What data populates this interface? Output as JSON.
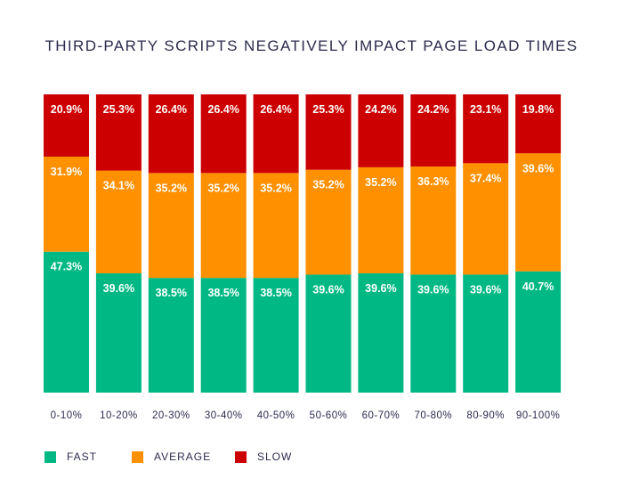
{
  "chart_data": {
    "type": "bar",
    "stacked": true,
    "title": "THIRD-PARTY SCRIPTS NEGATIVELY IMPACT PAGE LOAD TIMES",
    "categories": [
      "0-10%",
      "10-20%",
      "20-30%",
      "30-40%",
      "40-50%",
      "50-60%",
      "60-70%",
      "70-80%",
      "80-90%",
      "90-100%"
    ],
    "series": [
      {
        "name": "FAST",
        "color": "#00b884",
        "values": [
          47.3,
          39.6,
          38.5,
          38.5,
          38.5,
          39.6,
          39.6,
          39.6,
          39.6,
          40.7
        ]
      },
      {
        "name": "AVERAGE",
        "color": "#ff9000",
        "values": [
          31.9,
          34.1,
          35.2,
          35.2,
          35.2,
          35.2,
          35.2,
          36.3,
          37.4,
          39.6
        ]
      },
      {
        "name": "SLOW",
        "color": "#cc0000",
        "values": [
          20.9,
          25.3,
          26.4,
          26.4,
          26.4,
          25.3,
          24.2,
          24.2,
          23.1,
          19.8
        ]
      }
    ],
    "value_suffix": "%",
    "ylim": [
      0,
      100
    ],
    "grid": false,
    "legend_position": "bottom-left"
  }
}
